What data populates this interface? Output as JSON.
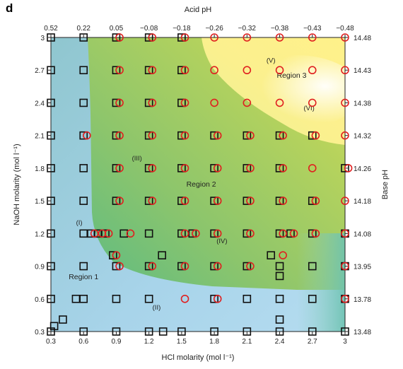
{
  "panel_label": "d",
  "chart_data": {
    "type": "scatter",
    "title": "",
    "xlabel": "HCl molarity (mol l⁻¹)",
    "ylabel": "NaOH molarity (mol l⁻¹)",
    "top_axis_label": "Acid pH",
    "right_axis_label": "Base pH",
    "xlim": [
      0.3,
      3
    ],
    "ylim": [
      0.3,
      3
    ],
    "x_ticks": [
      "0.3",
      "0.6",
      "0.9",
      "1.2",
      "1.5",
      "1.8",
      "2.1",
      "2.4",
      "2.7",
      "3"
    ],
    "y_ticks": [
      "0.3",
      "0.6",
      "0.9",
      "1.2",
      "1.5",
      "1.8",
      "2.1",
      "2.4",
      "2.7",
      "3"
    ],
    "top_ticks": [
      "0.52",
      "0.22",
      "0.05",
      "−0.08",
      "−0.18",
      "−0.26",
      "−0.32",
      "−0.38",
      "−0.43",
      "−0.48"
    ],
    "right_ticks": [
      "13.48",
      "13.78",
      "13.95",
      "14.08",
      "14.18",
      "14.26",
      "14.32",
      "14.38",
      "14.43",
      "14.48"
    ],
    "regions": [
      {
        "label": "Region 1",
        "x": 0.6,
        "y": 0.78,
        "color": "#a6d3e8"
      },
      {
        "label": "Region 2",
        "x": 1.68,
        "y": 1.63,
        "color": "#a6cf62"
      },
      {
        "label": "Region 3",
        "x": 2.51,
        "y": 2.63,
        "color": "#fbf28a"
      }
    ],
    "annotations": [
      {
        "text": "(I)",
        "x": 0.56,
        "y": 1.28
      },
      {
        "text": "(II)",
        "x": 1.27,
        "y": 0.5
      },
      {
        "text": "(III)",
        "x": 1.09,
        "y": 1.87
      },
      {
        "text": "(IV)",
        "x": 1.87,
        "y": 1.11
      },
      {
        "text": "(V)",
        "x": 2.32,
        "y": 2.77
      },
      {
        "text": "(VI)",
        "x": 2.67,
        "y": 2.33
      }
    ],
    "series": [
      {
        "marker": "square",
        "color": "#111111",
        "points": [
          [
            0.3,
            0.3
          ],
          [
            0.6,
            0.3
          ],
          [
            0.9,
            0.3
          ],
          [
            1.2,
            0.3
          ],
          [
            1.5,
            0.3
          ],
          [
            1.8,
            0.3
          ],
          [
            2.1,
            0.3
          ],
          [
            2.4,
            0.3
          ],
          [
            2.7,
            0.3
          ],
          [
            3,
            0.3
          ],
          [
            0.33,
            0.35
          ],
          [
            0.41,
            0.41
          ],
          [
            1.33,
            0.3
          ],
          [
            2.4,
            0.41
          ],
          [
            0.3,
            0.6
          ],
          [
            0.53,
            0.6
          ],
          [
            0.6,
            0.6
          ],
          [
            0.9,
            0.6
          ],
          [
            1.2,
            0.6
          ],
          [
            1.8,
            0.6
          ],
          [
            2.1,
            0.6
          ],
          [
            2.4,
            0.6
          ],
          [
            2.7,
            0.6
          ],
          [
            3,
            0.6
          ],
          [
            0.3,
            0.9
          ],
          [
            0.6,
            0.9
          ],
          [
            0.9,
            0.9
          ],
          [
            1.2,
            0.9
          ],
          [
            1.5,
            0.9
          ],
          [
            1.8,
            0.9
          ],
          [
            2.1,
            0.9
          ],
          [
            2.4,
            0.9
          ],
          [
            2.7,
            0.9
          ],
          [
            3,
            0.9
          ],
          [
            0.87,
            1.0
          ],
          [
            1.32,
            1.0
          ],
          [
            2.32,
            1.0
          ],
          [
            2.4,
            0.81
          ],
          [
            0.3,
            1.2
          ],
          [
            0.6,
            1.2
          ],
          [
            0.67,
            1.2
          ],
          [
            0.73,
            1.2
          ],
          [
            0.8,
            1.2
          ],
          [
            0.97,
            1.2
          ],
          [
            1.2,
            1.2
          ],
          [
            1.5,
            1.2
          ],
          [
            1.6,
            1.2
          ],
          [
            1.8,
            1.2
          ],
          [
            2.1,
            1.2
          ],
          [
            2.4,
            1.2
          ],
          [
            2.5,
            1.2
          ],
          [
            2.7,
            1.2
          ],
          [
            3,
            1.2
          ],
          [
            0.3,
            1.5
          ],
          [
            0.6,
            1.5
          ],
          [
            0.9,
            1.5
          ],
          [
            1.2,
            1.5
          ],
          [
            1.5,
            1.5
          ],
          [
            1.8,
            1.5
          ],
          [
            2.1,
            1.5
          ],
          [
            2.4,
            1.5
          ],
          [
            2.7,
            1.5
          ],
          [
            0.3,
            1.8
          ],
          [
            0.6,
            1.8
          ],
          [
            0.9,
            1.8
          ],
          [
            1.2,
            1.8
          ],
          [
            1.5,
            1.8
          ],
          [
            1.8,
            1.8
          ],
          [
            2.1,
            1.8
          ],
          [
            2.4,
            1.8
          ],
          [
            3,
            1.8
          ],
          [
            0.3,
            2.1
          ],
          [
            0.6,
            2.1
          ],
          [
            0.9,
            2.1
          ],
          [
            1.2,
            2.1
          ],
          [
            1.5,
            2.1
          ],
          [
            1.8,
            2.1
          ],
          [
            2.1,
            2.1
          ],
          [
            2.4,
            2.1
          ],
          [
            2.7,
            2.1
          ],
          [
            0.3,
            2.4
          ],
          [
            0.6,
            2.4
          ],
          [
            0.9,
            2.4
          ],
          [
            1.2,
            2.4
          ],
          [
            1.5,
            2.4
          ],
          [
            0.3,
            2.7
          ],
          [
            0.6,
            2.7
          ],
          [
            0.9,
            2.7
          ],
          [
            1.2,
            2.7
          ],
          [
            1.5,
            2.7
          ],
          [
            0.3,
            3
          ],
          [
            0.6,
            3
          ],
          [
            0.9,
            3
          ],
          [
            1.2,
            3
          ],
          [
            1.5,
            3
          ]
        ]
      },
      {
        "marker": "circle",
        "color": "#e02020",
        "points": [
          [
            1.53,
            0.6
          ],
          [
            1.83,
            0.6
          ],
          [
            3,
            0.6
          ],
          [
            0.93,
            0.9
          ],
          [
            1.23,
            0.9
          ],
          [
            1.53,
            0.9
          ],
          [
            1.83,
            0.9
          ],
          [
            2.13,
            0.9
          ],
          [
            3,
            0.9
          ],
          [
            0.9,
            1.0
          ],
          [
            2.43,
            1.0
          ],
          [
            0.7,
            1.2
          ],
          [
            0.77,
            1.2
          ],
          [
            0.83,
            1.2
          ],
          [
            1.03,
            1.2
          ],
          [
            1.53,
            1.2
          ],
          [
            1.63,
            1.2
          ],
          [
            1.83,
            1.2
          ],
          [
            2.13,
            1.2
          ],
          [
            2.43,
            1.2
          ],
          [
            2.53,
            1.2
          ],
          [
            2.73,
            1.2
          ],
          [
            3,
            1.2
          ],
          [
            0.93,
            1.5
          ],
          [
            1.23,
            1.5
          ],
          [
            1.53,
            1.5
          ],
          [
            1.83,
            1.5
          ],
          [
            2.13,
            1.5
          ],
          [
            2.43,
            1.5
          ],
          [
            2.73,
            1.5
          ],
          [
            3,
            1.5
          ],
          [
            0.93,
            1.8
          ],
          [
            1.23,
            1.8
          ],
          [
            1.53,
            1.8
          ],
          [
            1.83,
            1.8
          ],
          [
            2.13,
            1.8
          ],
          [
            2.43,
            1.8
          ],
          [
            2.7,
            1.8
          ],
          [
            3.03,
            1.8
          ],
          [
            0.63,
            2.1
          ],
          [
            0.93,
            2.1
          ],
          [
            1.23,
            2.1
          ],
          [
            1.53,
            2.1
          ],
          [
            1.83,
            2.1
          ],
          [
            2.13,
            2.1
          ],
          [
            2.43,
            2.1
          ],
          [
            2.73,
            2.1
          ],
          [
            3,
            2.1
          ],
          [
            0.93,
            2.4
          ],
          [
            1.23,
            2.4
          ],
          [
            1.53,
            2.4
          ],
          [
            1.8,
            2.4
          ],
          [
            2.1,
            2.4
          ],
          [
            2.4,
            2.4
          ],
          [
            2.7,
            2.4
          ],
          [
            3,
            2.4
          ],
          [
            0.93,
            2.7
          ],
          [
            1.23,
            2.7
          ],
          [
            1.53,
            2.7
          ],
          [
            1.8,
            2.7
          ],
          [
            2.1,
            2.7
          ],
          [
            2.4,
            2.7
          ],
          [
            2.7,
            2.7
          ],
          [
            3,
            2.7
          ],
          [
            0.93,
            3
          ],
          [
            1.23,
            3
          ],
          [
            1.53,
            3
          ],
          [
            1.8,
            3
          ],
          [
            2.1,
            3
          ],
          [
            2.4,
            3
          ],
          [
            2.7,
            3
          ],
          [
            3,
            3
          ]
        ]
      }
    ]
  }
}
